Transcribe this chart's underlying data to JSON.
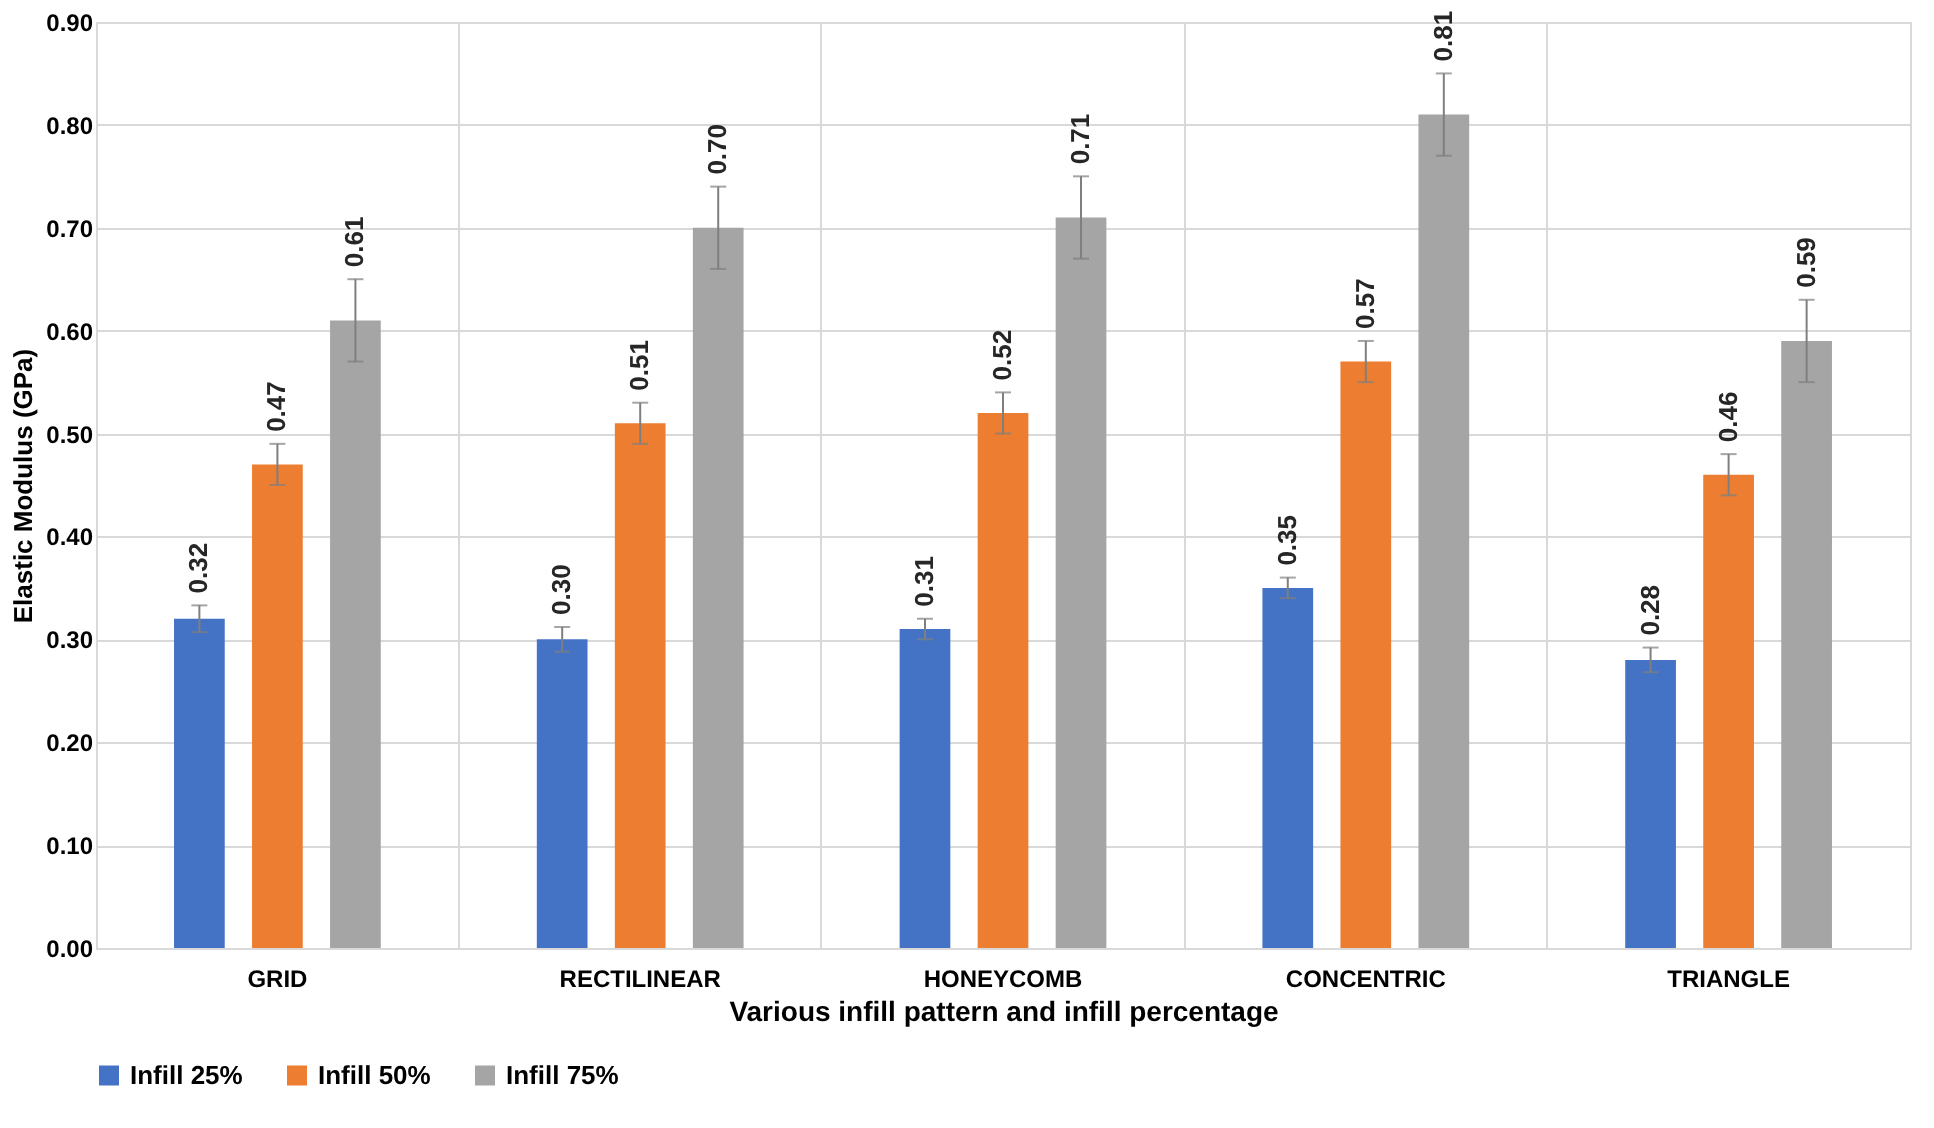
{
  "chart_data": {
    "type": "bar",
    "xlabel": "Various infill pattern and infill percentage",
    "ylabel": "Elastic Modulus (GPa)",
    "categories": [
      "GRID",
      "RECTILINEAR",
      "HONEYCOMB",
      "CONCENTRIC",
      "TRIANGLE"
    ],
    "series": [
      {
        "name": "Infill 25%",
        "color": "#4472c4",
        "values": [
          0.32,
          0.3,
          0.31,
          0.35,
          0.28
        ],
        "value_labels": [
          "0.32",
          "0.30",
          "0.31",
          "0.35",
          "0.28"
        ],
        "errors": [
          0.013,
          0.012,
          0.01,
          0.01,
          0.012
        ]
      },
      {
        "name": "Infill 50%",
        "color": "#ed7d31",
        "values": [
          0.47,
          0.51,
          0.52,
          0.57,
          0.46
        ],
        "value_labels": [
          "0.47",
          "0.51",
          "0.52",
          "0.57",
          "0.46"
        ],
        "errors": [
          0.02,
          0.02,
          0.02,
          0.02,
          0.02
        ]
      },
      {
        "name": "Infill 75%",
        "color": "#a5a5a5",
        "values": [
          0.61,
          0.7,
          0.71,
          0.81,
          0.59
        ],
        "value_labels": [
          "0.61",
          "0.70",
          "0.71",
          "0.81",
          "0.59"
        ],
        "errors": [
          0.04,
          0.04,
          0.04,
          0.04,
          0.04
        ]
      }
    ],
    "ylim": [
      0,
      0.9
    ],
    "yticks": [
      {
        "value": 0,
        "label": "0.00"
      },
      {
        "value": 0.1,
        "label": "0.10"
      },
      {
        "value": 0.2,
        "label": "0.20"
      },
      {
        "value": 0.3,
        "label": "0.30"
      },
      {
        "value": 0.4,
        "label": "0.40"
      },
      {
        "value": 0.5,
        "label": "0.50"
      },
      {
        "value": 0.6,
        "label": "0.60"
      },
      {
        "value": 0.7,
        "label": "0.70"
      },
      {
        "value": 0.8,
        "label": "0.80"
      },
      {
        "value": 0.9,
        "label": "0.90"
      }
    ],
    "grid": true,
    "legend": "bottom"
  }
}
